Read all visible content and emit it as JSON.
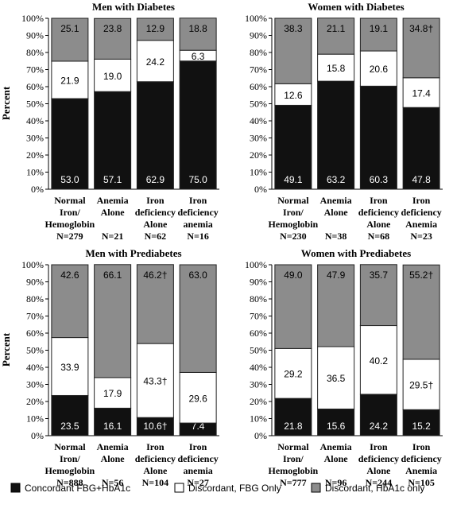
{
  "chart_data": [
    {
      "type": "bar",
      "stacked": true,
      "title": "Men with Diabetes",
      "ylabel": "Percent",
      "ylim": [
        0,
        100
      ],
      "yticks": [
        "0%",
        "10%",
        "20%",
        "30%",
        "40%",
        "50%",
        "60%",
        "70%",
        "80%",
        "90%",
        "100%"
      ],
      "categories": [
        [
          "Normal",
          "Iron/",
          "Hemoglobin",
          "N=279"
        ],
        [
          "Anemia",
          "Alone",
          "",
          "N=21"
        ],
        [
          "Iron",
          "deficiency",
          "Alone",
          "N=62"
        ],
        [
          "Iron",
          "deficiency",
          "anemia",
          "N=16"
        ]
      ],
      "series": [
        {
          "name": "Concordant FBG+HbA1c",
          "values": [
            53.0,
            57.1,
            62.9,
            75.0
          ],
          "labels": [
            "53.0",
            "57.1",
            "62.9",
            "75.0"
          ]
        },
        {
          "name": "Discordant, FBG Only",
          "values": [
            21.9,
            19.0,
            24.2,
            6.3
          ],
          "labels": [
            "21.9",
            "19.0",
            "24.2",
            "6.3"
          ]
        },
        {
          "name": "Discordant, HbA1c only",
          "values": [
            25.1,
            23.8,
            12.9,
            18.8
          ],
          "labels": [
            "25.1",
            "23.8",
            "12.9",
            "18.8"
          ]
        }
      ]
    },
    {
      "type": "bar",
      "stacked": true,
      "title": "Women with Diabetes",
      "ylabel": "",
      "ylim": [
        0,
        100
      ],
      "yticks": [
        "0%",
        "10%",
        "20%",
        "30%",
        "40%",
        "50%",
        "60%",
        "70%",
        "80%",
        "90%",
        "100%"
      ],
      "categories": [
        [
          "Normal",
          "Iron/",
          "Hemoglobin",
          "N=230"
        ],
        [
          "Anemia",
          "Alone",
          "",
          "N=38"
        ],
        [
          "Iron",
          "deficiency",
          "Alone",
          "N=68"
        ],
        [
          "Iron",
          "deficiency",
          "Anemia",
          "N=23"
        ]
      ],
      "series": [
        {
          "name": "Concordant FBG+HbA1c",
          "values": [
            49.1,
            63.2,
            60.3,
            47.8
          ],
          "labels": [
            "49.1",
            "63.2",
            "60.3",
            "47.8"
          ]
        },
        {
          "name": "Discordant, FBG Only",
          "values": [
            12.6,
            15.8,
            20.6,
            17.4
          ],
          "labels": [
            "12.6",
            "15.8",
            "20.6",
            "17.4"
          ]
        },
        {
          "name": "Discordant, HbA1c only",
          "values": [
            38.3,
            21.1,
            19.1,
            34.8
          ],
          "labels": [
            "38.3",
            "21.1",
            "19.1",
            "34.8†"
          ]
        }
      ]
    },
    {
      "type": "bar",
      "stacked": true,
      "title": "Men with Prediabetes",
      "ylabel": "Percent",
      "ylim": [
        0,
        100
      ],
      "yticks": [
        "0%",
        "10%",
        "20%",
        "30%",
        "40%",
        "50%",
        "60%",
        "70%",
        "80%",
        "90%",
        "100%"
      ],
      "categories": [
        [
          "Normal",
          "Iron/",
          "Hemoglobin",
          "N=888"
        ],
        [
          "Anemia",
          "Alone",
          "",
          "N=56"
        ],
        [
          "Iron",
          "deficiency",
          "Alone",
          "N=104"
        ],
        [
          "Iron",
          "deficiency",
          "anemia",
          "N=27"
        ]
      ],
      "series": [
        {
          "name": "Concordant FBG+HbA1c",
          "values": [
            23.5,
            16.1,
            10.6,
            7.4
          ],
          "labels": [
            "23.5",
            "16.1",
            "10.6†",
            "7.4"
          ]
        },
        {
          "name": "Discordant, FBG Only",
          "values": [
            33.9,
            17.9,
            43.3,
            29.6
          ],
          "labels": [
            "33.9",
            "17.9",
            "43.3†",
            "29.6"
          ]
        },
        {
          "name": "Discordant, HbA1c only",
          "values": [
            42.6,
            66.1,
            46.2,
            63.0
          ],
          "labels": [
            "42.6",
            "66.1",
            "46.2†",
            "63.0"
          ]
        }
      ]
    },
    {
      "type": "bar",
      "stacked": true,
      "title": "Women with Prediabetes",
      "ylabel": "",
      "ylim": [
        0,
        100
      ],
      "yticks": [
        "0%",
        "10%",
        "20%",
        "30%",
        "40%",
        "50%",
        "60%",
        "70%",
        "80%",
        "90%",
        "100%"
      ],
      "categories": [
        [
          "Normal",
          "Iron/",
          "Hemoglobin",
          "N=777"
        ],
        [
          "Anemia",
          "Alone",
          "",
          "N=96"
        ],
        [
          "Iron",
          "deficiency",
          "Alone",
          "N=244"
        ],
        [
          "Iron",
          "deficiency",
          "Anemia",
          "N=105"
        ]
      ],
      "series": [
        {
          "name": "Concordant FBG+HbA1c",
          "values": [
            21.8,
            15.6,
            24.2,
            15.2
          ],
          "labels": [
            "21.8",
            "15.6",
            "24.2",
            "15.2"
          ]
        },
        {
          "name": "Discordant, FBG Only",
          "values": [
            29.2,
            36.5,
            40.2,
            29.5
          ],
          "labels": [
            "29.2",
            "36.5",
            "40.2",
            "29.5†"
          ]
        },
        {
          "name": "Discordant, HbA1c only",
          "values": [
            49.0,
            47.9,
            35.7,
            55.2
          ],
          "labels": [
            "49.0",
            "47.9",
            "35.7",
            "55.2†"
          ]
        }
      ]
    }
  ],
  "legend": {
    "placement": "bottom",
    "items": [
      {
        "label": "Concordant FBG+HbA1c",
        "color": "#111111"
      },
      {
        "label": "Discordant, FBG Only",
        "color": "#ffffff"
      },
      {
        "label": "Discordant, HbA1c only",
        "color": "#8c8c8c"
      }
    ]
  },
  "colors": {
    "series": [
      "#111111",
      "#ffffff",
      "#8c8c8c"
    ],
    "label_on_dark": "#ffffff",
    "label_on_light": "#000000"
  }
}
